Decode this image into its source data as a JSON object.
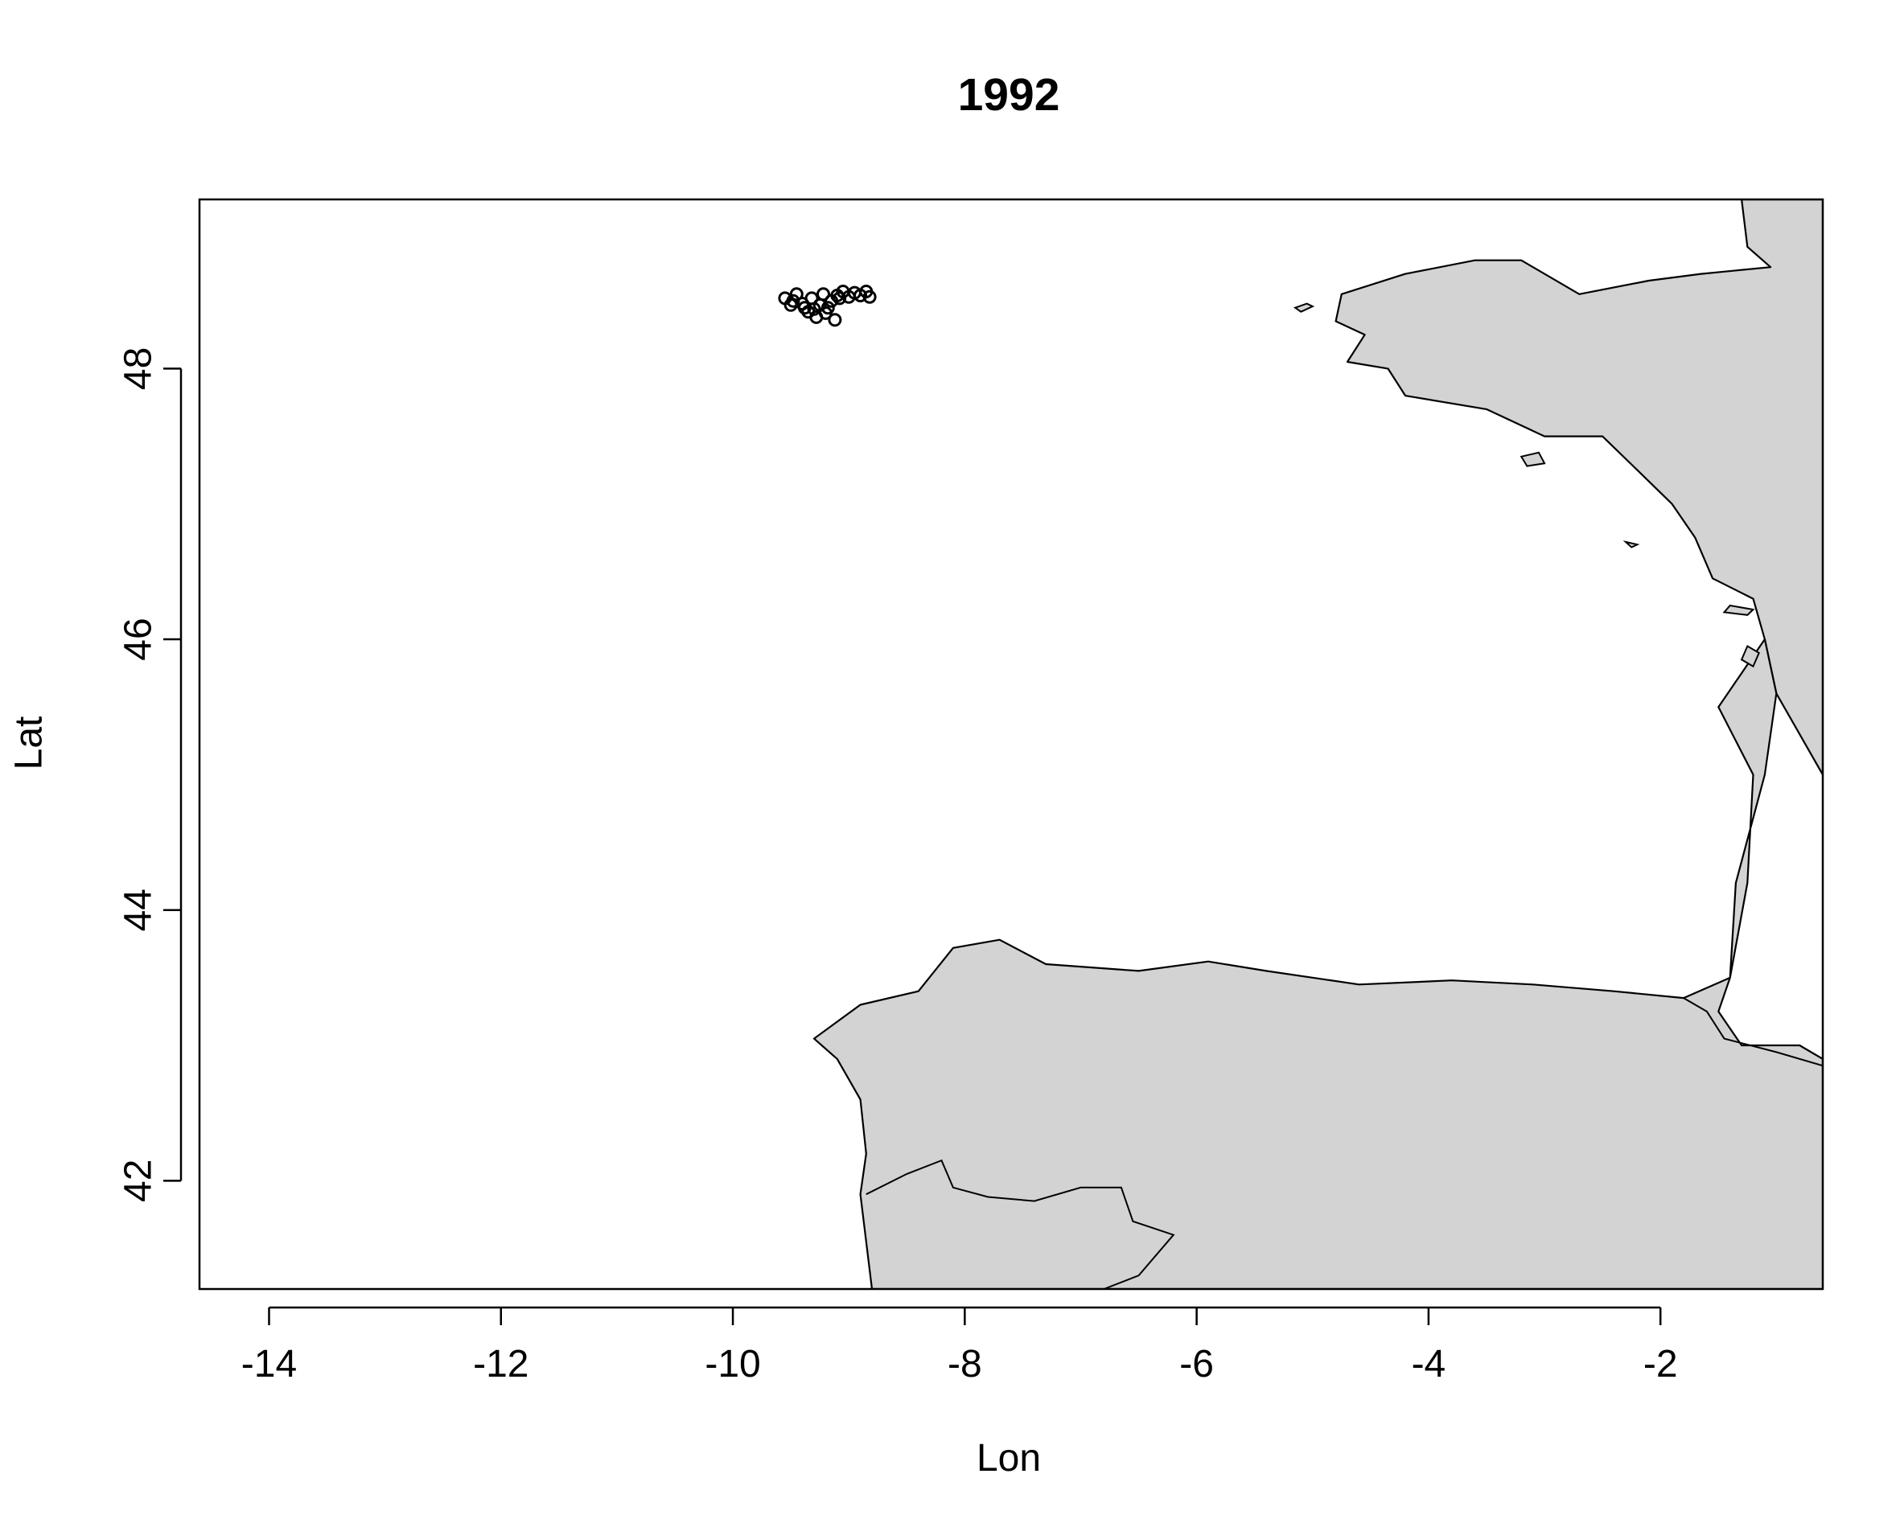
{
  "chart_data": {
    "type": "map",
    "title": "1992",
    "xlabel": "Lon",
    "ylabel": "Lat",
    "xlim": [
      -14.6,
      -0.6
    ],
    "ylim": [
      41.2,
      49.25
    ],
    "x_ticks": [
      {
        "value": -14,
        "label": "-14"
      },
      {
        "value": -12,
        "label": "-12"
      },
      {
        "value": -10,
        "label": "-10"
      },
      {
        "value": -8,
        "label": "-8"
      },
      {
        "value": -6,
        "label": "-6"
      },
      {
        "value": -4,
        "label": "-4"
      },
      {
        "value": -2,
        "label": "-2"
      }
    ],
    "y_ticks": [
      {
        "value": 42,
        "label": "42"
      },
      {
        "value": 44,
        "label": "44"
      },
      {
        "value": 46,
        "label": "46"
      },
      {
        "value": 48,
        "label": "48"
      }
    ],
    "colors": {
      "land": "#d3d3d3",
      "ocean": "#ffffff",
      "outline": "#000000",
      "points": "#000000"
    },
    "land": {
      "brittany_france": [
        [
          -1.3,
          49.25
        ],
        [
          -1.25,
          48.9
        ],
        [
          -1.05,
          48.75
        ],
        [
          -1.65,
          48.7
        ],
        [
          -2.1,
          48.65
        ],
        [
          -2.7,
          48.55
        ],
        [
          -3.2,
          48.8
        ],
        [
          -3.6,
          48.8
        ],
        [
          -4.2,
          48.7
        ],
        [
          -4.75,
          48.55
        ],
        [
          -4.8,
          48.35
        ],
        [
          -4.55,
          48.25
        ],
        [
          -4.7,
          48.05
        ],
        [
          -4.35,
          48.0
        ],
        [
          -4.2,
          47.8
        ],
        [
          -3.5,
          47.7
        ],
        [
          -3.0,
          47.5
        ],
        [
          -2.5,
          47.5
        ],
        [
          -2.2,
          47.25
        ],
        [
          -1.9,
          47.0
        ],
        [
          -1.7,
          46.75
        ],
        [
          -1.55,
          46.45
        ],
        [
          -1.2,
          46.3
        ],
        [
          -1.1,
          46.0
        ],
        [
          -1.0,
          45.6
        ],
        [
          -0.6,
          45.0
        ],
        [
          -0.6,
          49.25
        ]
      ],
      "iberia_gascony": [
        [
          -1.5,
          45.5
        ],
        [
          -1.2,
          45.0
        ],
        [
          -1.25,
          44.2
        ],
        [
          -1.4,
          43.5
        ],
        [
          -1.8,
          43.35
        ],
        [
          -2.4,
          43.4
        ],
        [
          -3.1,
          43.45
        ],
        [
          -3.8,
          43.48
        ],
        [
          -4.6,
          43.45
        ],
        [
          -5.4,
          43.55
        ],
        [
          -5.9,
          43.62
        ],
        [
          -6.5,
          43.55
        ],
        [
          -7.3,
          43.6
        ],
        [
          -7.7,
          43.78
        ],
        [
          -8.1,
          43.72
        ],
        [
          -8.4,
          43.4
        ],
        [
          -8.9,
          43.3
        ],
        [
          -9.3,
          43.05
        ],
        [
          -9.1,
          42.9
        ],
        [
          -8.9,
          42.6
        ],
        [
          -8.85,
          42.2
        ],
        [
          -8.9,
          41.9
        ],
        [
          -8.85,
          41.55
        ],
        [
          -8.8,
          41.2
        ],
        [
          -0.6,
          41.2
        ],
        [
          -0.6,
          42.9
        ],
        [
          -0.8,
          43.0
        ],
        [
          -1.3,
          43.0
        ],
        [
          -1.5,
          43.25
        ],
        [
          -1.4,
          43.5
        ],
        [
          -1.35,
          44.2
        ],
        [
          -1.1,
          45.0
        ],
        [
          -1.0,
          45.6
        ],
        [
          -1.1,
          46.0
        ]
      ]
    },
    "borders": [
      [
        [
          -8.85,
          41.9
        ],
        [
          -8.5,
          42.05
        ],
        [
          -8.2,
          42.15
        ],
        [
          -8.1,
          41.95
        ],
        [
          -7.8,
          41.88
        ],
        [
          -7.4,
          41.85
        ],
        [
          -7.0,
          41.95
        ],
        [
          -6.65,
          41.95
        ],
        [
          -6.55,
          41.7
        ],
        [
          -6.2,
          41.6
        ],
        [
          -6.5,
          41.3
        ],
        [
          -6.8,
          41.2
        ]
      ],
      [
        [
          -1.8,
          43.35
        ],
        [
          -1.6,
          43.25
        ],
        [
          -1.45,
          43.05
        ],
        [
          -1.0,
          42.95
        ],
        [
          -0.6,
          42.85
        ]
      ]
    ],
    "islands": [
      [
        [
          -5.15,
          48.45
        ],
        [
          -5.05,
          48.48
        ],
        [
          -5.0,
          48.46
        ],
        [
          -5.1,
          48.42
        ]
      ],
      [
        [
          -3.2,
          47.35
        ],
        [
          -3.05,
          47.38
        ],
        [
          -3.0,
          47.3
        ],
        [
          -3.15,
          47.28
        ]
      ],
      [
        [
          -1.4,
          46.25
        ],
        [
          -1.2,
          46.22
        ],
        [
          -1.25,
          46.18
        ],
        [
          -1.45,
          46.2
        ]
      ],
      [
        [
          -1.25,
          45.95
        ],
        [
          -1.15,
          45.9
        ],
        [
          -1.2,
          45.8
        ],
        [
          -1.3,
          45.85
        ]
      ],
      [
        [
          -2.3,
          46.72
        ],
        [
          -2.2,
          46.7
        ],
        [
          -2.25,
          46.68
        ]
      ]
    ],
    "points": [
      {
        "lon": -9.55,
        "lat": 48.52
      },
      {
        "lon": -9.5,
        "lat": 48.47
      },
      {
        "lon": -9.45,
        "lat": 48.55
      },
      {
        "lon": -9.4,
        "lat": 48.48
      },
      {
        "lon": -9.35,
        "lat": 48.42
      },
      {
        "lon": -9.32,
        "lat": 48.52
      },
      {
        "lon": -9.28,
        "lat": 48.38
      },
      {
        "lon": -9.25,
        "lat": 48.47
      },
      {
        "lon": -9.22,
        "lat": 48.55
      },
      {
        "lon": -9.2,
        "lat": 48.41
      },
      {
        "lon": -9.15,
        "lat": 48.5
      },
      {
        "lon": -9.12,
        "lat": 48.36
      },
      {
        "lon": -9.1,
        "lat": 48.54
      },
      {
        "lon": -9.05,
        "lat": 48.57
      },
      {
        "lon": -9.0,
        "lat": 48.53
      },
      {
        "lon": -8.95,
        "lat": 48.56
      },
      {
        "lon": -8.9,
        "lat": 48.54
      },
      {
        "lon": -8.85,
        "lat": 48.57
      },
      {
        "lon": -8.82,
        "lat": 48.53
      },
      {
        "lon": -9.48,
        "lat": 48.5
      },
      {
        "lon": -9.38,
        "lat": 48.45
      },
      {
        "lon": -9.3,
        "lat": 48.44
      },
      {
        "lon": -9.18,
        "lat": 48.45
      },
      {
        "lon": -9.08,
        "lat": 48.52
      }
    ]
  }
}
